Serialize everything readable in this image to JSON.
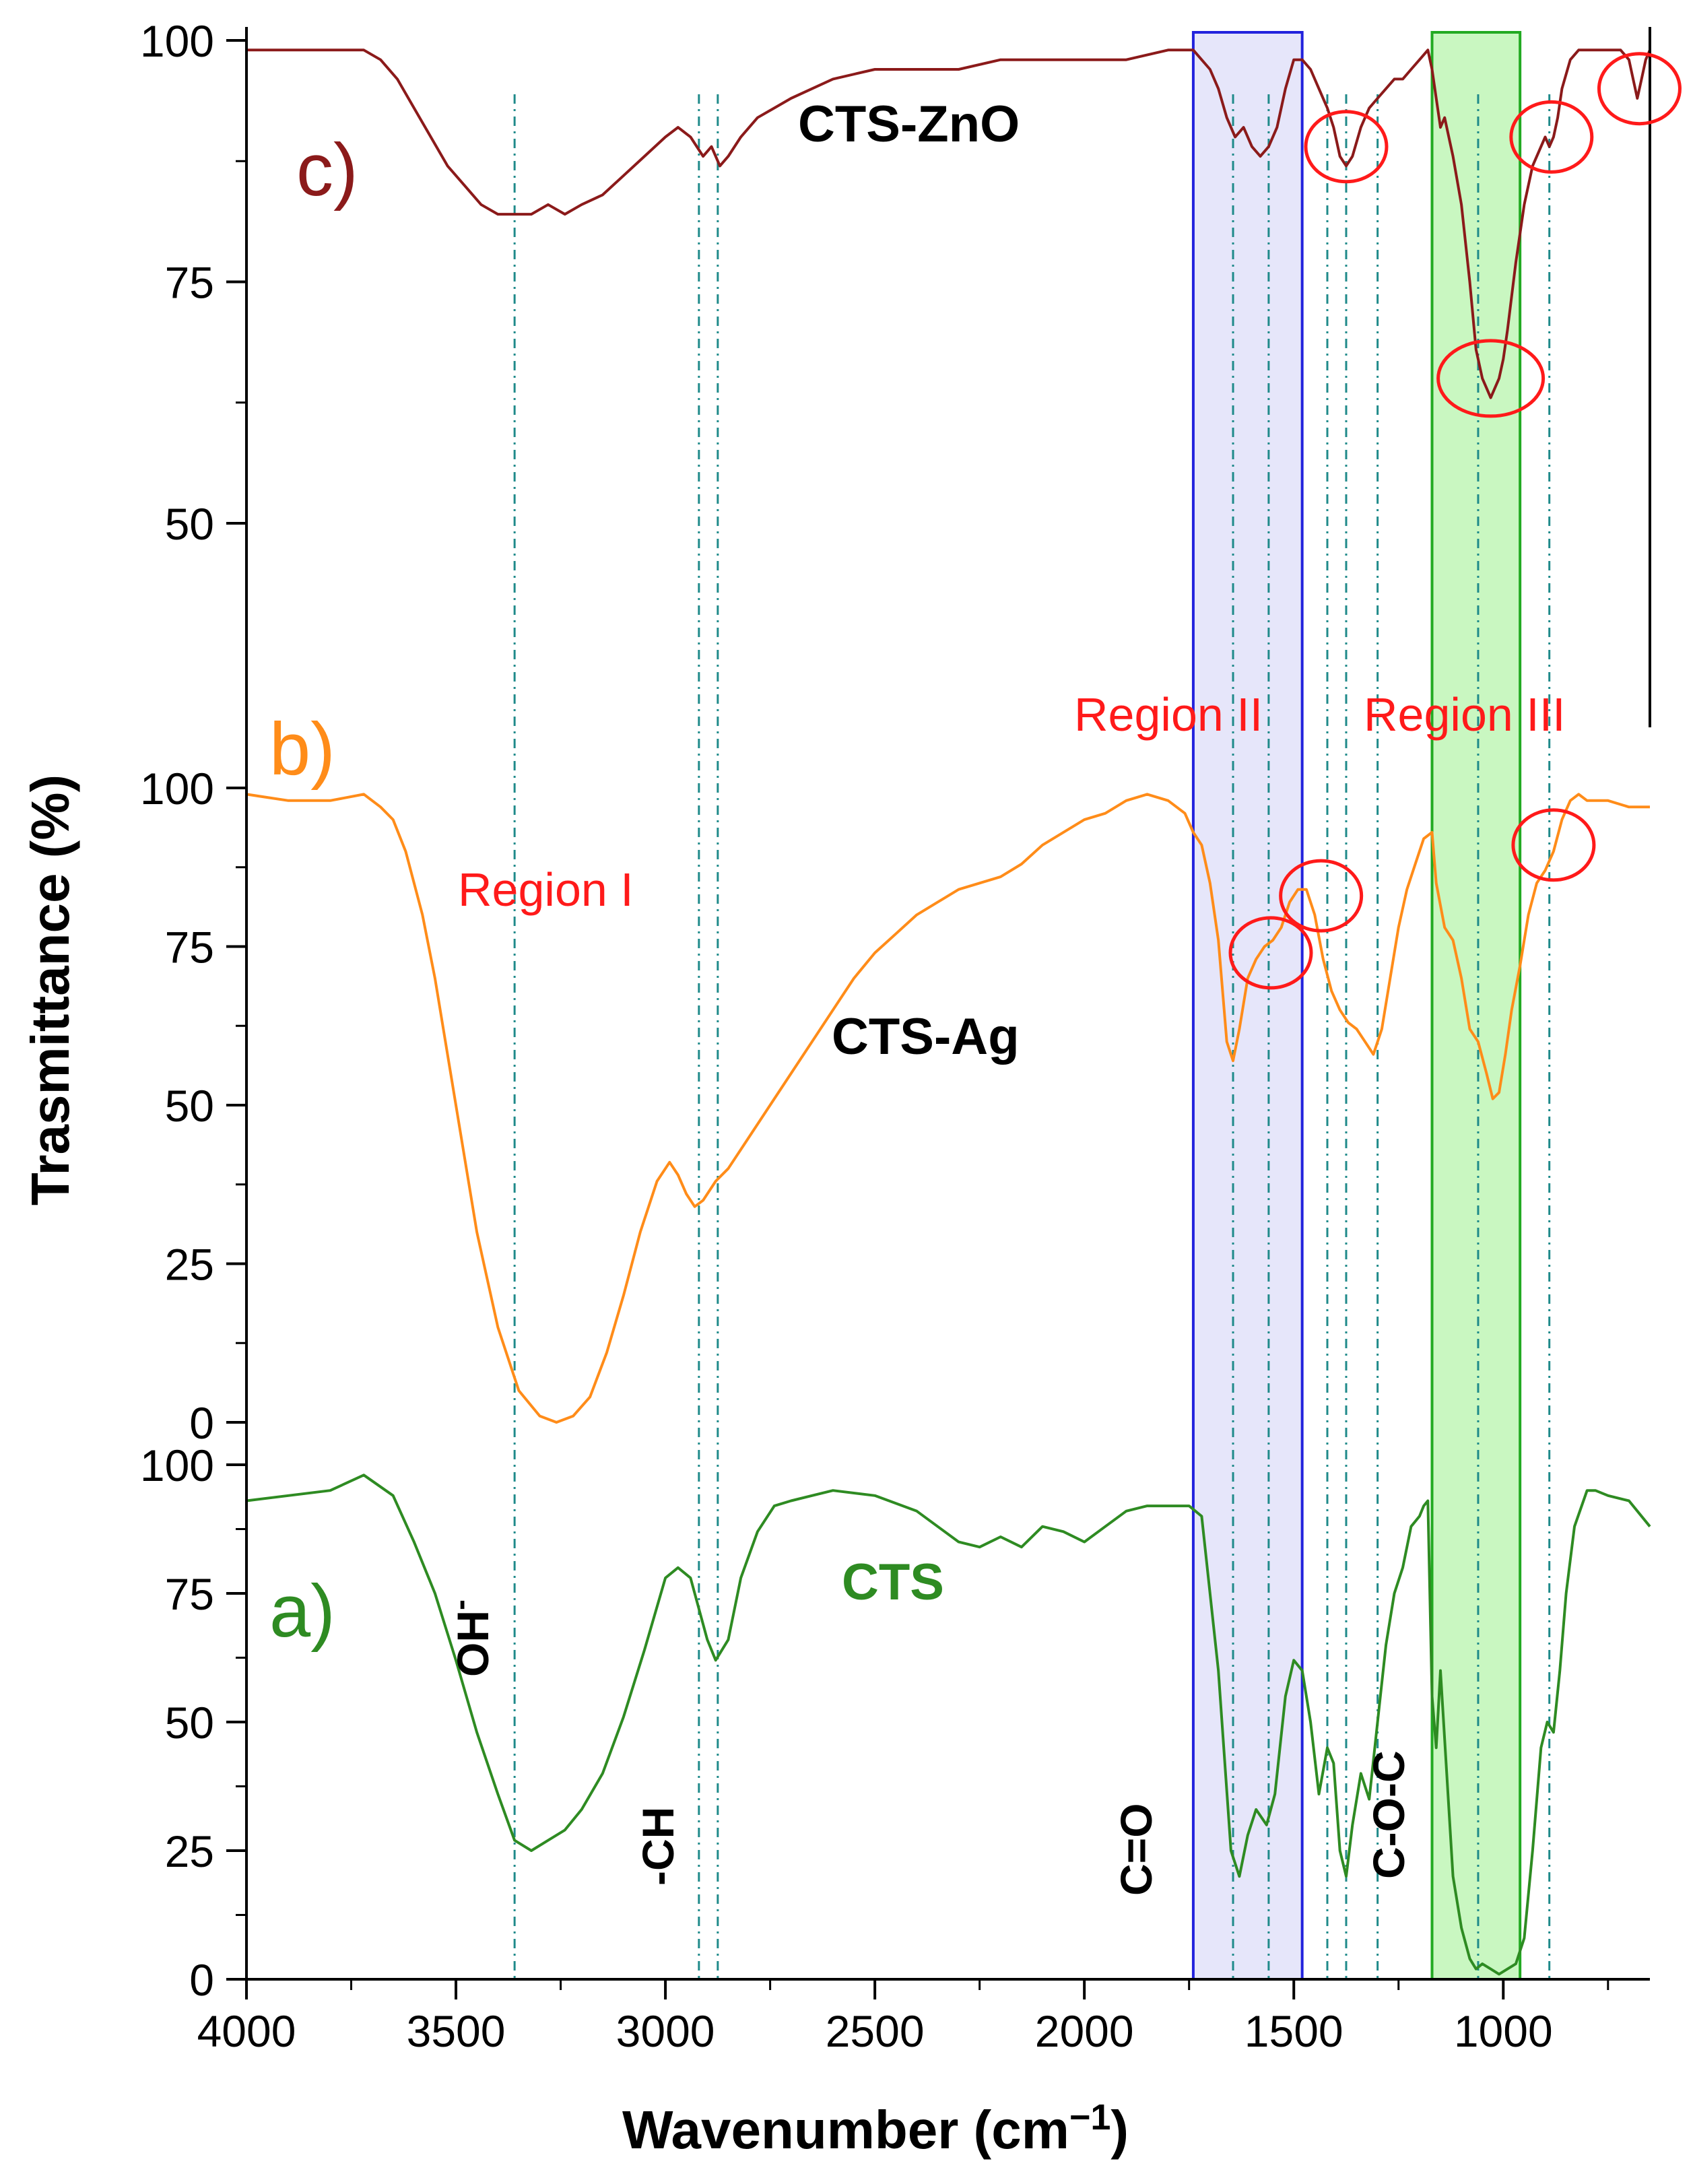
{
  "chart_data": {
    "type": "line",
    "xlabel": "Wavenumber (cm",
    "xlabel_sup": "−1",
    "xlabel_close": ")",
    "ylabel": "Trasmittance (%)",
    "xlim": [
      4000,
      650
    ],
    "x_ticks": [
      {
        "value": 4000,
        "label": "4000"
      },
      {
        "value": 3500,
        "label": "3500"
      },
      {
        "value": 3000,
        "label": "3000"
      },
      {
        "value": 2500,
        "label": "2500"
      },
      {
        "value": 2000,
        "label": "2000"
      },
      {
        "value": 1500,
        "label": "1500"
      },
      {
        "value": 1000,
        "label": "1000"
      }
    ],
    "panels": [
      {
        "id": "a",
        "panel_label": "a)",
        "series_label": "CTS",
        "color": "#2e8b22",
        "ylim": [
          0,
          100
        ],
        "y_ticks": [
          {
            "value": 0,
            "label": "0"
          },
          {
            "value": 25,
            "label": "25"
          },
          {
            "value": 50,
            "label": "50"
          },
          {
            "value": 75,
            "label": "75"
          },
          {
            "value": 100,
            "label": "100"
          }
        ],
        "x": [
          4000,
          3900,
          3800,
          3720,
          3650,
          3600,
          3550,
          3500,
          3450,
          3400,
          3360,
          3320,
          3280,
          3240,
          3200,
          3150,
          3100,
          3050,
          3000,
          2970,
          2940,
          2900,
          2880,
          2850,
          2820,
          2780,
          2740,
          2700,
          2650,
          2600,
          2500,
          2400,
          2350,
          2300,
          2250,
          2200,
          2150,
          2100,
          2050,
          2000,
          1950,
          1900,
          1850,
          1800,
          1750,
          1720,
          1680,
          1650,
          1630,
          1610,
          1590,
          1565,
          1545,
          1520,
          1500,
          1480,
          1460,
          1440,
          1420,
          1405,
          1390,
          1375,
          1360,
          1340,
          1320,
          1300,
          1280,
          1260,
          1240,
          1220,
          1200,
          1190,
          1180,
          1170,
          1160,
          1150,
          1135,
          1120,
          1100,
          1080,
          1065,
          1050,
          1030,
          1010,
          990,
          970,
          950,
          930,
          910,
          895,
          880,
          865,
          850,
          830,
          800,
          780,
          750,
          700,
          650
        ],
        "values": [
          93,
          94,
          95,
          98,
          94,
          85,
          75,
          62,
          48,
          36,
          27,
          25,
          27,
          29,
          33,
          40,
          51,
          64,
          78,
          80,
          78,
          66,
          62,
          66,
          78,
          87,
          92,
          93,
          94,
          95,
          94,
          91,
          88,
          85,
          84,
          86,
          84,
          88,
          87,
          85,
          88,
          91,
          92,
          92,
          92,
          90,
          60,
          25,
          20,
          28,
          33,
          30,
          36,
          55,
          62,
          60,
          50,
          36,
          45,
          42,
          25,
          20,
          30,
          40,
          35,
          50,
          65,
          75,
          80,
          88,
          90,
          92,
          93,
          55,
          45,
          60,
          40,
          20,
          10,
          4,
          2,
          3,
          2,
          1,
          2,
          3,
          8,
          25,
          45,
          50,
          48,
          60,
          75,
          88,
          95,
          95,
          94,
          93,
          88
        ]
      },
      {
        "id": "b",
        "panel_label": "b)",
        "series_label": "CTS-Ag",
        "color": "#ff8c19",
        "ylim": [
          0,
          100
        ],
        "y_ticks": [
          {
            "value": 0,
            "label": "0"
          },
          {
            "value": 25,
            "label": "25"
          },
          {
            "value": 50,
            "label": "50"
          },
          {
            "value": 75,
            "label": "75"
          },
          {
            "value": 100,
            "label": "100"
          }
        ],
        "x": [
          4000,
          3900,
          3800,
          3720,
          3680,
          3650,
          3620,
          3580,
          3550,
          3500,
          3450,
          3400,
          3350,
          3300,
          3260,
          3220,
          3180,
          3140,
          3100,
          3060,
          3020,
          2990,
          2970,
          2950,
          2930,
          2910,
          2880,
          2850,
          2800,
          2750,
          2700,
          2650,
          2600,
          2550,
          2500,
          2450,
          2400,
          2350,
          2300,
          2250,
          2200,
          2150,
          2100,
          2050,
          2000,
          1950,
          1900,
          1850,
          1800,
          1760,
          1740,
          1720,
          1700,
          1680,
          1660,
          1645,
          1630,
          1610,
          1590,
          1570,
          1550,
          1530,
          1510,
          1490,
          1470,
          1450,
          1430,
          1410,
          1390,
          1370,
          1350,
          1330,
          1310,
          1290,
          1270,
          1250,
          1230,
          1210,
          1190,
          1170,
          1160,
          1140,
          1120,
          1100,
          1080,
          1060,
          1040,
          1025,
          1010,
          995,
          980,
          960,
          940,
          920,
          900,
          880,
          860,
          840,
          820,
          800,
          750,
          700,
          650
        ],
        "values": [
          99,
          98,
          98,
          99,
          97,
          95,
          90,
          80,
          70,
          50,
          30,
          15,
          5,
          1,
          0,
          1,
          4,
          11,
          20,
          30,
          38,
          41,
          39,
          36,
          34,
          35,
          38,
          40,
          45,
          50,
          55,
          60,
          65,
          70,
          74,
          77,
          80,
          82,
          84,
          85,
          86,
          88,
          91,
          93,
          95,
          96,
          98,
          99,
          98,
          96,
          93,
          91,
          85,
          76,
          60,
          57,
          62,
          70,
          73,
          75,
          76,
          78,
          82,
          84,
          84,
          80,
          73,
          68,
          65,
          63,
          62,
          60,
          58,
          62,
          70,
          78,
          84,
          88,
          92,
          93,
          85,
          78,
          76,
          70,
          62,
          60,
          55,
          51,
          52,
          58,
          65,
          72,
          80,
          85,
          87,
          90,
          95,
          98,
          99,
          98,
          98,
          97,
          97
        ]
      },
      {
        "id": "c",
        "panel_label": "c)",
        "series_label": "CTS-ZnO",
        "color": "#8b1a1a",
        "ylim": [
          0,
          100
        ],
        "y_ticks": [
          {
            "value": 50,
            "label": "50"
          },
          {
            "value": 75,
            "label": "75"
          },
          {
            "value": 100,
            "label": "100"
          }
        ],
        "x": [
          4000,
          3900,
          3800,
          3720,
          3680,
          3640,
          3600,
          3560,
          3520,
          3480,
          3440,
          3400,
          3360,
          3320,
          3280,
          3240,
          3200,
          3150,
          3100,
          3050,
          3000,
          2970,
          2940,
          2910,
          2890,
          2870,
          2850,
          2820,
          2780,
          2700,
          2600,
          2500,
          2400,
          2300,
          2200,
          2100,
          2000,
          1900,
          1800,
          1760,
          1740,
          1720,
          1700,
          1680,
          1660,
          1640,
          1620,
          1600,
          1580,
          1560,
          1540,
          1520,
          1500,
          1480,
          1460,
          1440,
          1420,
          1405,
          1390,
          1375,
          1360,
          1340,
          1320,
          1300,
          1280,
          1260,
          1240,
          1220,
          1200,
          1180,
          1170,
          1160,
          1150,
          1140,
          1130,
          1120,
          1100,
          1080,
          1065,
          1050,
          1040,
          1030,
          1020,
          1010,
          1000,
          990,
          970,
          950,
          930,
          910,
          900,
          890,
          880,
          870,
          860,
          840,
          820,
          800,
          780,
          750,
          720,
          700,
          690,
          680,
          670,
          660,
          650
        ],
        "values": [
          99,
          99,
          99,
          99,
          98,
          96,
          93,
          90,
          87,
          85,
          83,
          82,
          82,
          82,
          83,
          82,
          83,
          84,
          86,
          88,
          90,
          91,
          90,
          88,
          89,
          87,
          88,
          90,
          92,
          94,
          96,
          97,
          97,
          97,
          98,
          98,
          98,
          98,
          99,
          99,
          99,
          98,
          97,
          95,
          92,
          90,
          91,
          89,
          88,
          89,
          91,
          95,
          98,
          98,
          97,
          95,
          93,
          91,
          88,
          87,
          88,
          91,
          93,
          94,
          95,
          96,
          96,
          97,
          98,
          99,
          97,
          94,
          91,
          92,
          90,
          88,
          83,
          75,
          68,
          65,
          64,
          63,
          64,
          65,
          67,
          70,
          77,
          83,
          87,
          89,
          90,
          89,
          90,
          92,
          95,
          98,
          99,
          99,
          99,
          99,
          99,
          98,
          96,
          94,
          96,
          98,
          99
        ]
      }
    ],
    "region_labels": [
      "Region I",
      "Region II",
      "Region III"
    ],
    "bands": [
      {
        "from": 1740,
        "to": 1480,
        "color": "#e6e6fa",
        "stroke": "#2222dd"
      },
      {
        "from": 1170,
        "to": 960,
        "color": "#c9f7c1",
        "stroke": "#22aa22"
      }
    ],
    "ref_lines": [
      3360,
      2920,
      2875,
      1645,
      1560,
      1420,
      1375,
      1300,
      1060,
      890
    ],
    "group_labels": [
      "OH",
      "-CH",
      "C=O",
      "C-O-C"
    ],
    "group_label_suffix": "-",
    "circle_annotations": [
      {
        "x": 1375,
        "panel": "c",
        "y": 89
      },
      {
        "x": 885,
        "panel": "c",
        "y": 90
      },
      {
        "x": 675,
        "panel": "c",
        "y": 95
      },
      {
        "x": 1030,
        "panel": "c",
        "y": 65
      },
      {
        "x": 1555,
        "panel": "b",
        "y": 74
      },
      {
        "x": 1435,
        "panel": "b",
        "y": 83
      },
      {
        "x": 880,
        "panel": "b",
        "y": 91
      }
    ]
  }
}
